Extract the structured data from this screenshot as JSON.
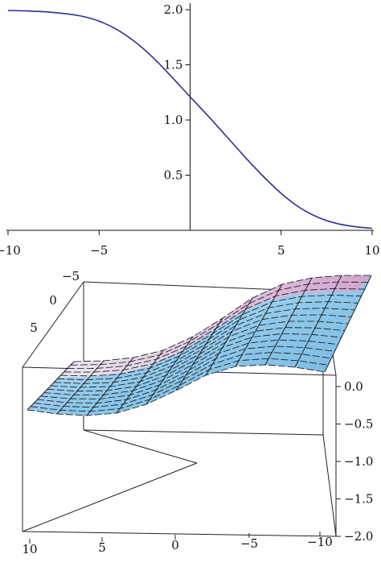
{
  "chart_data": [
    {
      "type": "line",
      "title": "",
      "xlabel": "",
      "ylabel": "",
      "xlim": [
        -10,
        10
      ],
      "ylim": [
        0,
        2.0
      ],
      "x_ticks": [
        -10,
        -5,
        5,
        10
      ],
      "x_tick_labels": [
        "−10",
        "−5",
        "5",
        "10"
      ],
      "y_ticks": [
        0.5,
        1.0,
        1.5,
        2.0
      ],
      "y_tick_labels": [
        "0.5",
        "1.0",
        "1.5",
        "2.0"
      ],
      "grid": false,
      "line_color": "#2e2e9e",
      "series": [
        {
          "x": [
            -10,
            -9,
            -8,
            -7,
            -6,
            -5,
            -4,
            -3,
            -2,
            -1,
            0,
            1,
            2,
            3,
            4,
            5,
            6,
            7,
            8,
            9,
            10
          ],
          "y": [
            1.993,
            1.988,
            1.981,
            1.966,
            1.942,
            1.896,
            1.818,
            1.705,
            1.56,
            1.389,
            1.21,
            1.034,
            0.851,
            0.667,
            0.493,
            0.335,
            0.208,
            0.12,
            0.064,
            0.034,
            0.018
          ]
        }
      ]
    },
    {
      "type": "surface",
      "title": "",
      "xlabel": "",
      "ylabel": "",
      "zlabel": "",
      "x_tick_labels": [
        "10",
        "5",
        "0",
        "−5",
        "−10"
      ],
      "y_tick_labels": [
        "−5",
        "0",
        "5"
      ],
      "z_tick_labels": [
        "0.0",
        "−0.5",
        "−1.0",
        "−1.5",
        "−2.0"
      ],
      "z_ticks": [
        0.0,
        -0.5,
        -1.0,
        -1.5,
        -2.0
      ],
      "zlim": [
        -2.0,
        0.0
      ],
      "surface_colors": [
        "#bfe6f5",
        "#7ec0e6",
        "#e6b6d8",
        "#f7eef4"
      ],
      "mesh_color": "#111111",
      "profile": {
        "x": [
          10,
          8,
          6,
          4,
          2,
          0,
          -2,
          -4,
          -6,
          -8,
          -10
        ],
        "z": [
          -0.01,
          -0.02,
          -0.06,
          -0.15,
          -0.32,
          -0.55,
          -0.8,
          -0.97,
          -1.05,
          -1.08,
          -1.08
        ]
      }
    }
  ]
}
